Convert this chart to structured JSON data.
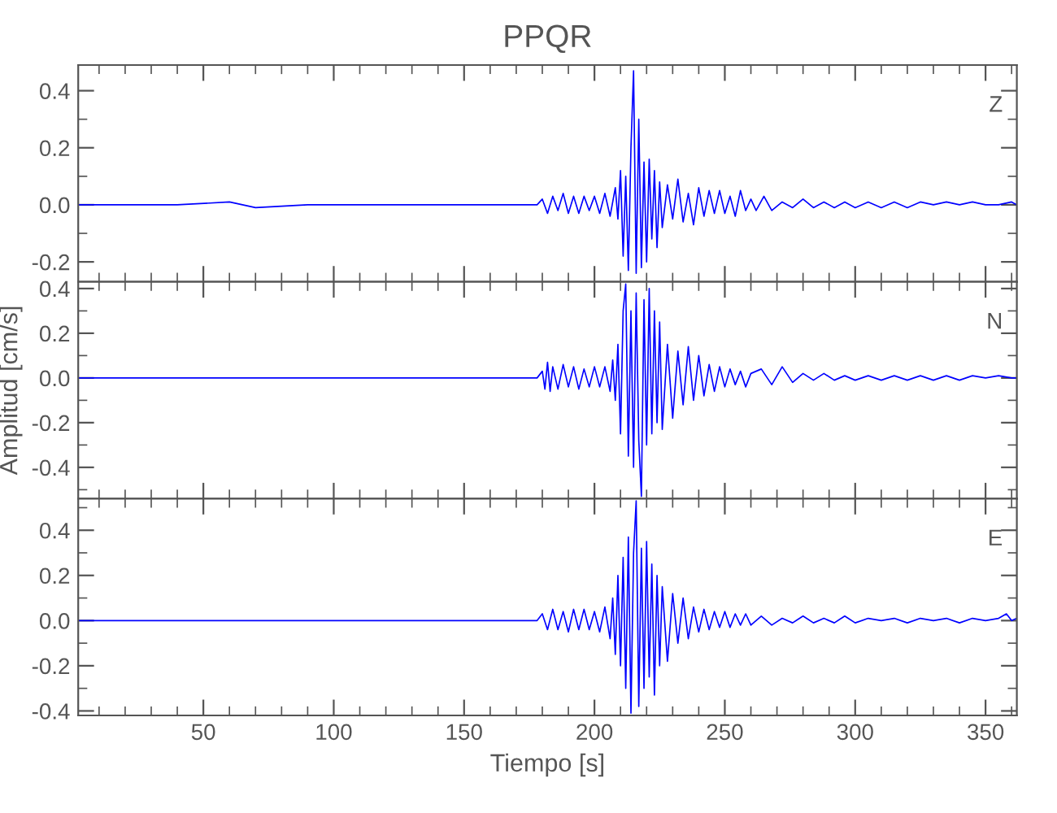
{
  "chart_data": [
    {
      "type": "line",
      "title": "PPQR",
      "annotations": [
        "Z"
      ],
      "tick_labels": "y",
      "grid": false,
      "legend": false,
      "xlim": [
        2,
        362
      ],
      "xticks": [
        50,
        100,
        150,
        200,
        250,
        300,
        350
      ],
      "ylim": [
        -0.27,
        0.49
      ],
      "yticks": [
        {
          "value": -0.2,
          "label": "-0.2"
        },
        {
          "value": 0,
          "label": "0.0"
        },
        {
          "value": 0.2,
          "label": "0.2"
        },
        {
          "value": 0.4,
          "label": "0.4"
        }
      ],
      "series": [
        {
          "color": "#0000ff",
          "x": [
            2,
            20,
            40,
            60,
            70,
            90,
            120,
            150,
            178,
            180,
            182,
            184,
            186,
            188,
            190,
            192,
            194,
            196,
            198,
            200,
            202,
            204,
            206,
            208,
            209,
            210,
            211,
            212,
            213,
            214,
            215,
            216,
            217,
            218,
            219,
            220,
            221,
            222,
            223,
            224,
            225,
            226,
            228,
            230,
            232,
            234,
            236,
            238,
            240,
            242,
            244,
            246,
            248,
            250,
            252,
            254,
            256,
            258,
            260,
            262,
            265,
            268,
            272,
            276,
            280,
            284,
            288,
            292,
            296,
            300,
            305,
            310,
            315,
            320,
            325,
            330,
            335,
            340,
            345,
            350,
            355,
            360,
            362
          ],
          "values": [
            0,
            0,
            0,
            0.01,
            -0.01,
            0,
            0,
            0,
            0,
            0.02,
            -0.03,
            0.03,
            -0.02,
            0.04,
            -0.03,
            0.03,
            -0.03,
            0.03,
            -0.02,
            0.03,
            -0.03,
            0.04,
            -0.04,
            0.06,
            -0.05,
            0.12,
            -0.18,
            0.1,
            -0.23,
            0.2,
            0.47,
            -0.24,
            0.3,
            -0.22,
            0.15,
            -0.2,
            0.16,
            -0.12,
            0.12,
            -0.15,
            0.08,
            -0.08,
            0.07,
            -0.05,
            0.09,
            -0.06,
            0.04,
            -0.07,
            0.06,
            -0.04,
            0.05,
            -0.03,
            0.05,
            -0.03,
            0.03,
            -0.04,
            0.05,
            -0.02,
            0.02,
            -0.02,
            0.03,
            -0.02,
            0.01,
            -0.01,
            0.02,
            -0.01,
            0.01,
            -0.01,
            0.01,
            -0.01,
            0.01,
            -0.01,
            0.01,
            -0.01,
            0.01,
            0,
            0.01,
            0,
            0.01,
            0,
            0,
            0.01,
            0
          ]
        }
      ]
    },
    {
      "type": "line",
      "ylabel": "Amplitud [cm/s]",
      "annotations": [
        "N"
      ],
      "tick_labels": "y",
      "grid": false,
      "legend": false,
      "xlim": [
        2,
        362
      ],
      "xticks": [
        50,
        100,
        150,
        200,
        250,
        300,
        350
      ],
      "ylim": [
        -0.54,
        0.43
      ],
      "yticks": [
        {
          "value": -0.4,
          "label": "-0.4"
        },
        {
          "value": -0.2,
          "label": "-0.2"
        },
        {
          "value": 0,
          "label": "0.0"
        },
        {
          "value": 0.2,
          "label": "0.2"
        },
        {
          "value": 0.4,
          "label": "0.4"
        }
      ],
      "series": [
        {
          "color": "#0000ff",
          "x": [
            2,
            30,
            60,
            90,
            120,
            150,
            178,
            180,
            181,
            182,
            183,
            184,
            186,
            188,
            190,
            192,
            194,
            196,
            198,
            200,
            202,
            204,
            206,
            207,
            208,
            209,
            210,
            211,
            212,
            213,
            214,
            215,
            216,
            217,
            218,
            219,
            220,
            221,
            222,
            223,
            224,
            225,
            226,
            228,
            230,
            232,
            234,
            236,
            238,
            240,
            242,
            244,
            246,
            248,
            250,
            252,
            254,
            256,
            258,
            260,
            264,
            268,
            272,
            276,
            280,
            284,
            288,
            292,
            296,
            300,
            305,
            310,
            315,
            320,
            325,
            330,
            335,
            340,
            345,
            350,
            355,
            360,
            362
          ],
          "values": [
            0,
            0,
            0,
            0,
            0,
            0,
            0,
            0.03,
            -0.05,
            0.07,
            -0.06,
            0.05,
            -0.05,
            0.06,
            -0.04,
            0.05,
            -0.05,
            0.04,
            -0.04,
            0.05,
            -0.04,
            0.05,
            -0.06,
            0.08,
            -0.1,
            0.15,
            -0.25,
            0.3,
            0.42,
            -0.35,
            0.3,
            -0.4,
            0.38,
            -0.28,
            -0.53,
            0.35,
            -0.3,
            0.4,
            -0.25,
            0.3,
            -0.2,
            0.25,
            -0.23,
            0.15,
            -0.18,
            0.12,
            -0.12,
            0.14,
            -0.1,
            0.1,
            -0.08,
            0.06,
            -0.06,
            0.05,
            -0.04,
            0.04,
            -0.03,
            0.03,
            -0.04,
            0.02,
            0.04,
            -0.03,
            0.05,
            -0.02,
            0.02,
            -0.01,
            0.02,
            -0.01,
            0.01,
            -0.01,
            0.01,
            -0.01,
            0.01,
            -0.01,
            0.01,
            -0.01,
            0.01,
            -0.01,
            0.01,
            0,
            0.01,
            0,
            0
          ]
        }
      ]
    },
    {
      "type": "line",
      "xlabel": "Tiempo [s]",
      "annotations": [
        "E"
      ],
      "grid": false,
      "legend": false,
      "xlim": [
        2,
        362
      ],
      "xticks": [
        50,
        100,
        150,
        200,
        250,
        300,
        350
      ],
      "ylim": [
        -0.42,
        0.54
      ],
      "yticks": [
        {
          "value": -0.4,
          "label": "-0.4"
        },
        {
          "value": -0.2,
          "label": "-0.2"
        },
        {
          "value": 0,
          "label": "0.0"
        },
        {
          "value": 0.2,
          "label": "0.2"
        },
        {
          "value": 0.4,
          "label": "0.4"
        }
      ],
      "series": [
        {
          "color": "#0000ff",
          "x": [
            2,
            30,
            60,
            90,
            120,
            150,
            178,
            180,
            182,
            184,
            186,
            188,
            190,
            192,
            194,
            196,
            198,
            200,
            202,
            204,
            206,
            207,
            208,
            209,
            210,
            211,
            212,
            213,
            214,
            215,
            216,
            217,
            218,
            219,
            220,
            221,
            222,
            223,
            224,
            225,
            226,
            228,
            230,
            232,
            234,
            236,
            238,
            240,
            242,
            244,
            246,
            248,
            250,
            252,
            254,
            256,
            258,
            260,
            264,
            268,
            272,
            276,
            280,
            284,
            288,
            292,
            296,
            300,
            305,
            310,
            315,
            320,
            325,
            330,
            335,
            340,
            345,
            350,
            355,
            358,
            360,
            362
          ],
          "values": [
            0,
            0,
            0,
            0,
            0,
            0,
            0,
            0.03,
            -0.04,
            0.05,
            -0.04,
            0.04,
            -0.05,
            0.05,
            -0.04,
            0.05,
            -0.04,
            0.04,
            -0.05,
            0.06,
            -0.08,
            0.1,
            -0.15,
            0.2,
            -0.2,
            0.28,
            -0.3,
            0.37,
            -0.41,
            0.3,
            0.53,
            -0.38,
            0.32,
            -0.3,
            0.35,
            -0.25,
            0.25,
            -0.33,
            0.2,
            -0.2,
            0.15,
            -0.18,
            0.12,
            -0.1,
            0.1,
            -0.08,
            0.06,
            -0.05,
            0.05,
            -0.04,
            0.04,
            -0.03,
            0.04,
            -0.03,
            0.03,
            -0.02,
            0.03,
            -0.02,
            0.02,
            -0.02,
            0.01,
            -0.01,
            0.02,
            -0.01,
            0.01,
            -0.01,
            0.02,
            -0.01,
            0.01,
            0,
            0.01,
            -0.01,
            0.01,
            0,
            0.01,
            -0.01,
            0.01,
            0,
            0.01,
            0.03,
            0,
            0.01
          ]
        }
      ]
    }
  ]
}
